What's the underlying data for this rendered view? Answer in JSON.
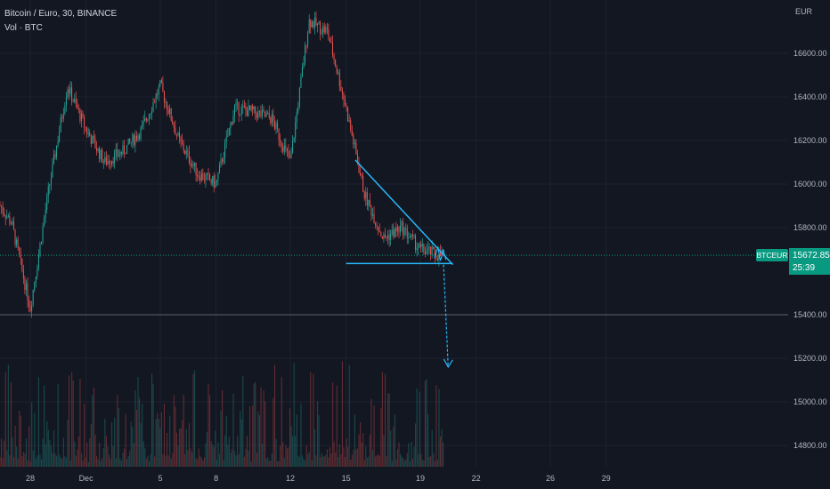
{
  "header": {
    "title": "Bitcoin / Euro, 30, BINANCE",
    "volume_label": "Vol · BTC"
  },
  "colors": {
    "background": "#131722",
    "grid": "#1e2230",
    "up": "#26a69a",
    "down": "#ef5350",
    "drawing": "#29b6f6",
    "badge": "#089981",
    "text": "#b2b5be"
  },
  "current_price": {
    "symbol": "BTCEUR",
    "price": "15672.85",
    "countdown": "25:39"
  },
  "chart_data": {
    "type": "candlestick",
    "currency_label": "EUR",
    "y_ticks": [
      "16600.00",
      "16400.00",
      "16200.00",
      "16000.00",
      "15800.00",
      "15400.00",
      "15200.00",
      "15000.00",
      "14800.00"
    ],
    "x_ticks": [
      "28",
      "Dec",
      "5",
      "8",
      "12",
      "15",
      "19",
      "22",
      "26",
      "29"
    ],
    "ylim": [
      14700,
      16800
    ],
    "horizontal_line": 15400,
    "price_line": 15672.85,
    "drawings": {
      "descending_line": [
        [
          "2022-12-15 12:00",
          16110
        ],
        [
          "2022-12-20 18:00",
          15630
        ]
      ],
      "support_line": [
        [
          "2022-12-15 00:00",
          15635
        ],
        [
          "2022-12-20 18:00",
          15635
        ]
      ],
      "arrow_from": [
        "2022-12-20 06:00",
        15630
      ],
      "arrow_to": [
        "2022-12-20 12:00",
        15160
      ]
    },
    "price_path": [
      [
        "2022-11-26",
        15950
      ],
      [
        "2022-11-27",
        15820
      ],
      [
        "2022-11-28",
        15430
      ],
      [
        "2022-11-29",
        15980
      ],
      [
        "2022-11-30",
        16450
      ],
      [
        "2022-12-01",
        16250
      ],
      [
        "2022-12-02",
        16100
      ],
      [
        "2022-12-03",
        16150
      ],
      [
        "2022-12-04",
        16250
      ],
      [
        "2022-12-05",
        16450
      ],
      [
        "2022-12-06",
        16200
      ],
      [
        "2022-12-07",
        16050
      ],
      [
        "2022-12-08",
        16000
      ],
      [
        "2022-12-09",
        16350
      ],
      [
        "2022-12-10",
        16330
      ],
      [
        "2022-12-11",
        16300
      ],
      [
        "2022-12-12",
        16100
      ],
      [
        "2022-12-13",
        16750
      ],
      [
        "2022-12-14",
        16700
      ],
      [
        "2022-12-15",
        16350
      ],
      [
        "2022-12-16",
        15950
      ],
      [
        "2022-12-17",
        15750
      ],
      [
        "2022-12-18",
        15800
      ],
      [
        "2022-12-19",
        15700
      ],
      [
        "2022-12-20",
        15672.85
      ]
    ]
  }
}
